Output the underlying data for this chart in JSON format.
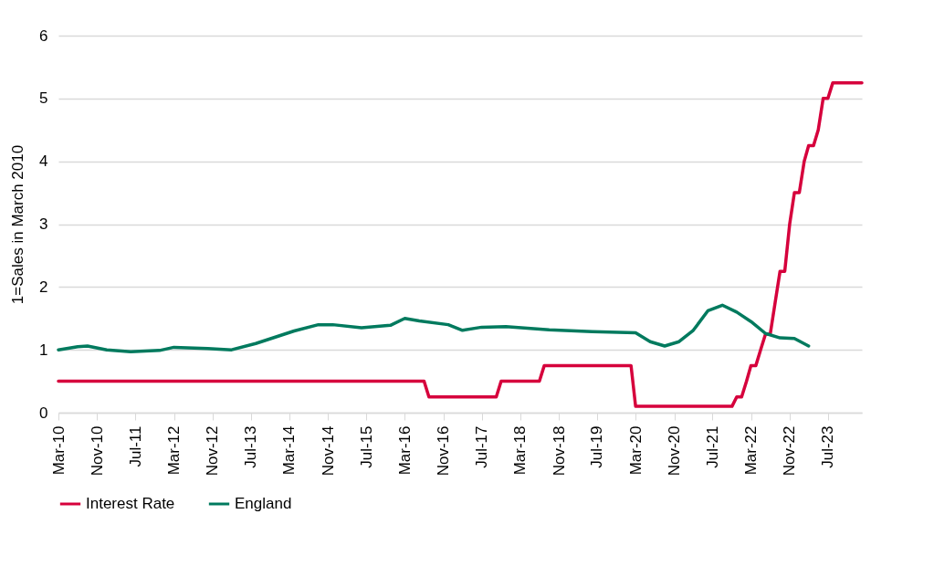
{
  "chart_data": {
    "type": "line",
    "ylabel": "1=Sales in March 2010",
    "ylim": [
      0,
      6
    ],
    "yticks": [
      0,
      1,
      2,
      3,
      4,
      5,
      6
    ],
    "xlim": [
      "2010-03",
      "2024-02"
    ],
    "xticks": [
      {
        "value": "2010-03",
        "label": "Mar-10"
      },
      {
        "value": "2010-11",
        "label": "Nov-10"
      },
      {
        "value": "2011-07",
        "label": "Jul-11"
      },
      {
        "value": "2012-03",
        "label": "Mar-12"
      },
      {
        "value": "2012-11",
        "label": "Nov-12"
      },
      {
        "value": "2013-07",
        "label": "Jul-13"
      },
      {
        "value": "2014-03",
        "label": "Mar-14"
      },
      {
        "value": "2014-11",
        "label": "Nov-14"
      },
      {
        "value": "2015-07",
        "label": "Jul-15"
      },
      {
        "value": "2016-03",
        "label": "Mar-16"
      },
      {
        "value": "2016-11",
        "label": "Nov-16"
      },
      {
        "value": "2017-07",
        "label": "Jul-17"
      },
      {
        "value": "2018-03",
        "label": "Mar-18"
      },
      {
        "value": "2018-11",
        "label": "Nov-18"
      },
      {
        "value": "2019-07",
        "label": "Jul-19"
      },
      {
        "value": "2020-03",
        "label": "Mar-20"
      },
      {
        "value": "2020-11",
        "label": "Nov-20"
      },
      {
        "value": "2021-07",
        "label": "Jul-21"
      },
      {
        "value": "2022-03",
        "label": "Mar-22"
      },
      {
        "value": "2022-11",
        "label": "Nov-22"
      },
      {
        "value": "2023-07",
        "label": "Jul-23"
      }
    ],
    "grid": "y",
    "legend": "bottom",
    "marker": "none",
    "line_style": "solid",
    "series": [
      {
        "name": "Interest Rate",
        "color": "#d6003c",
        "x": [
          "2010-03",
          "2016-07",
          "2016-08",
          "2017-10",
          "2017-11",
          "2018-07",
          "2018-08",
          "2020-02",
          "2020-03",
          "2021-11",
          "2021-12",
          "2022-01",
          "2022-02",
          "2022-03",
          "2022-04",
          "2022-05",
          "2022-06",
          "2022-07",
          "2022-08",
          "2022-09",
          "2022-10",
          "2022-11",
          "2022-12",
          "2023-01",
          "2023-02",
          "2023-03",
          "2023-04",
          "2023-05",
          "2023-06",
          "2023-07",
          "2023-08",
          "2024-02"
        ],
        "values": [
          0.5,
          0.5,
          0.25,
          0.25,
          0.5,
          0.5,
          0.75,
          0.75,
          0.1,
          0.1,
          0.25,
          0.25,
          0.5,
          0.75,
          0.75,
          1,
          1.25,
          1.25,
          1.75,
          2.25,
          2.25,
          3,
          3.5,
          3.5,
          4,
          4.25,
          4.25,
          4.5,
          5,
          5,
          5.25,
          5.25
        ]
      },
      {
        "name": "England",
        "color": "#007a5e",
        "x": [
          "2010-03",
          "2010-07",
          "2010-09",
          "2011-01",
          "2011-06",
          "2011-12",
          "2012-03",
          "2012-10",
          "2013-03",
          "2013-08",
          "2014-04",
          "2014-09",
          "2014-12",
          "2015-06",
          "2015-12",
          "2016-03",
          "2016-06",
          "2016-12",
          "2017-03",
          "2017-07",
          "2017-12",
          "2018-09",
          "2019-06",
          "2020-03",
          "2020-06",
          "2020-09",
          "2020-12",
          "2021-03",
          "2021-06",
          "2021-09",
          "2021-12",
          "2022-03",
          "2022-06",
          "2022-09",
          "2022-12",
          "2023-03"
        ],
        "values": [
          1.0,
          1.05,
          1.06,
          1.0,
          0.97,
          0.99,
          1.04,
          1.02,
          1.0,
          1.1,
          1.3,
          1.4,
          1.4,
          1.35,
          1.39,
          1.5,
          1.46,
          1.4,
          1.31,
          1.36,
          1.37,
          1.32,
          1.29,
          1.27,
          1.13,
          1.06,
          1.13,
          1.31,
          1.62,
          1.71,
          1.6,
          1.45,
          1.26,
          1.19,
          1.18,
          1.06
        ]
      }
    ]
  }
}
